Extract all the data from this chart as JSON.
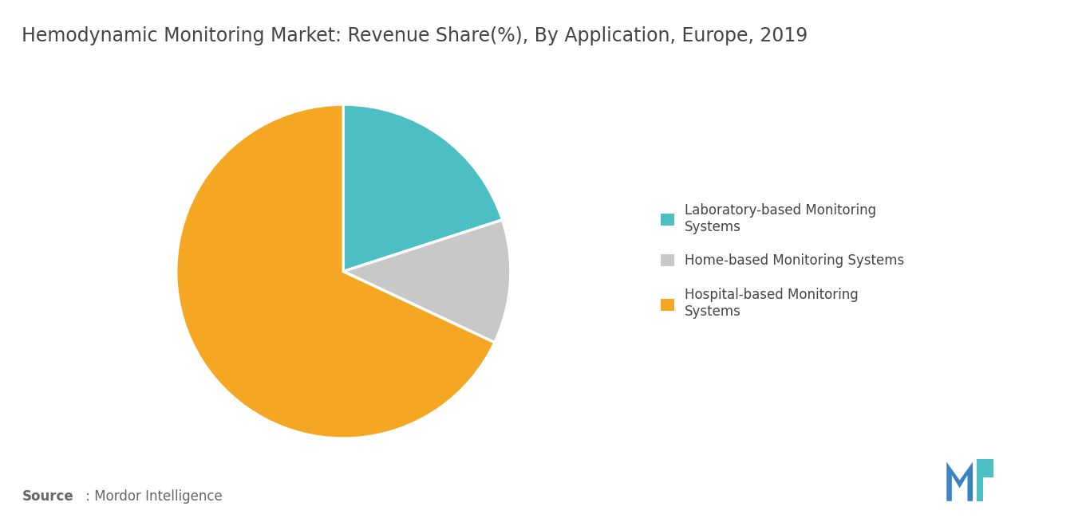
{
  "title": "Hemodynamic Monitoring Market: Revenue Share(%), By Application, Europe, 2019",
  "slices": [
    {
      "label": "Laboratory-based Monitoring\nSystems",
      "value": 20,
      "color": "#4BBFC4"
    },
    {
      "label": "Home-based Monitoring Systems",
      "value": 12,
      "color": "#C8C8C8"
    },
    {
      "label": "Hospital-based Monitoring\nSystems",
      "value": 68,
      "color": "#F5A623"
    }
  ],
  "background_color": "#FFFFFF",
  "title_fontsize": 17,
  "title_color": "#444444",
  "legend_fontsize": 12,
  "source_bold": "Source",
  "source_rest": " : Mordor Intelligence",
  "startangle": 90,
  "logo_m_color": "#3B82C4",
  "logo_tick_color": "#4BBFC4"
}
